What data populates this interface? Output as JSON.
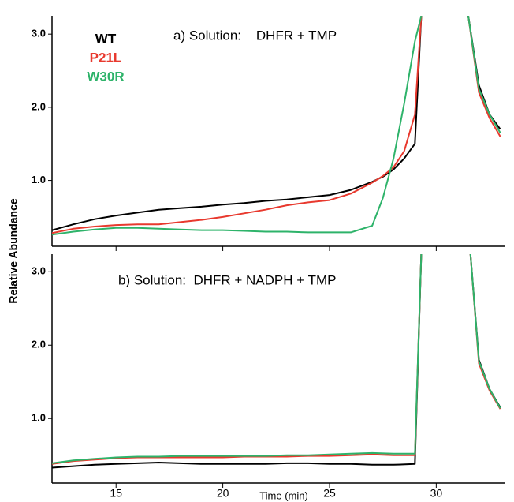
{
  "chart_data": [
    {
      "type": "line",
      "annotation": "a) Solution:    DHFR + TMP",
      "ylabel": "Relative Abundance",
      "x": [
        12,
        13,
        14,
        15,
        16,
        17,
        18,
        19,
        20,
        21,
        22,
        23,
        24,
        25,
        26,
        27,
        27.5,
        28,
        28.5,
        29,
        29.3,
        30.5,
        31.5,
        32,
        32.5,
        33
      ],
      "series": [
        {
          "name": "WT",
          "color": "#000000",
          "values": [
            0.32,
            0.4,
            0.47,
            0.52,
            0.56,
            0.6,
            0.62,
            0.64,
            0.67,
            0.69,
            0.72,
            0.74,
            0.77,
            0.8,
            0.87,
            0.98,
            1.05,
            1.15,
            1.3,
            1.5,
            3.25,
            null,
            3.25,
            2.3,
            1.9,
            1.7
          ]
        },
        {
          "name": "P21L",
          "color": "#e8392e",
          "values": [
            0.28,
            0.34,
            0.37,
            0.39,
            0.4,
            0.4,
            0.43,
            0.46,
            0.5,
            0.55,
            0.6,
            0.66,
            0.7,
            0.73,
            0.82,
            0.97,
            1.06,
            1.18,
            1.4,
            1.9,
            3.25,
            null,
            3.25,
            2.2,
            1.85,
            1.6
          ]
        },
        {
          "name": "W30R",
          "color": "#2eb36a",
          "values": [
            0.26,
            0.3,
            0.33,
            0.35,
            0.35,
            0.34,
            0.33,
            0.32,
            0.32,
            0.31,
            0.3,
            0.3,
            0.29,
            0.29,
            0.29,
            0.38,
            0.76,
            1.3,
            2.05,
            2.9,
            3.25,
            null,
            3.25,
            2.25,
            1.9,
            1.65
          ]
        }
      ],
      "xlim": [
        12,
        33.2
      ],
      "xticks": [
        15,
        20,
        25,
        30
      ],
      "ylim": [
        0.1,
        3.25
      ],
      "yticks": [
        {
          "value": 1,
          "label": "1.0"
        },
        {
          "value": 2,
          "label": "2.0"
        },
        {
          "value": 3,
          "label": "3.0"
        }
      ],
      "legend": "upper left"
    },
    {
      "type": "line",
      "annotation": "b) Solution:  DHFR + NADPH + TMP",
      "xlabel": "Time (min)",
      "x": [
        12,
        13,
        14,
        15,
        16,
        17,
        18,
        19,
        20,
        21,
        22,
        23,
        24,
        25,
        26,
        27,
        28,
        29,
        29.3,
        30.5,
        31.6,
        32,
        32.5,
        33
      ],
      "series": [
        {
          "color": "#000000",
          "values": [
            0.33,
            0.35,
            0.37,
            0.38,
            0.39,
            0.4,
            0.39,
            0.38,
            0.38,
            0.38,
            0.38,
            0.39,
            0.39,
            0.38,
            0.38,
            0.37,
            0.37,
            0.38,
            3.25,
            null,
            3.25,
            1.8,
            1.4,
            1.15
          ]
        },
        {
          "color": "#e8392e",
          "values": [
            0.38,
            0.42,
            0.44,
            0.46,
            0.47,
            0.47,
            0.47,
            0.47,
            0.47,
            0.48,
            0.48,
            0.48,
            0.49,
            0.49,
            0.5,
            0.51,
            0.5,
            0.5,
            3.25,
            null,
            3.25,
            1.75,
            1.38,
            1.13
          ]
        },
        {
          "color": "#2eb36a",
          "values": [
            0.39,
            0.43,
            0.45,
            0.47,
            0.48,
            0.48,
            0.49,
            0.49,
            0.49,
            0.49,
            0.49,
            0.5,
            0.5,
            0.51,
            0.52,
            0.53,
            0.52,
            0.52,
            3.25,
            null,
            3.25,
            1.78,
            1.4,
            1.14
          ]
        }
      ],
      "xlim": [
        12,
        33.2
      ],
      "xticks": [
        15,
        20,
        25,
        30
      ],
      "ylim": [
        0.12,
        3.24
      ],
      "yticks": [
        {
          "value": 1,
          "label": "1.0"
        },
        {
          "value": 2,
          "label": "2.0"
        },
        {
          "value": 3,
          "label": "3.0"
        }
      ]
    }
  ]
}
